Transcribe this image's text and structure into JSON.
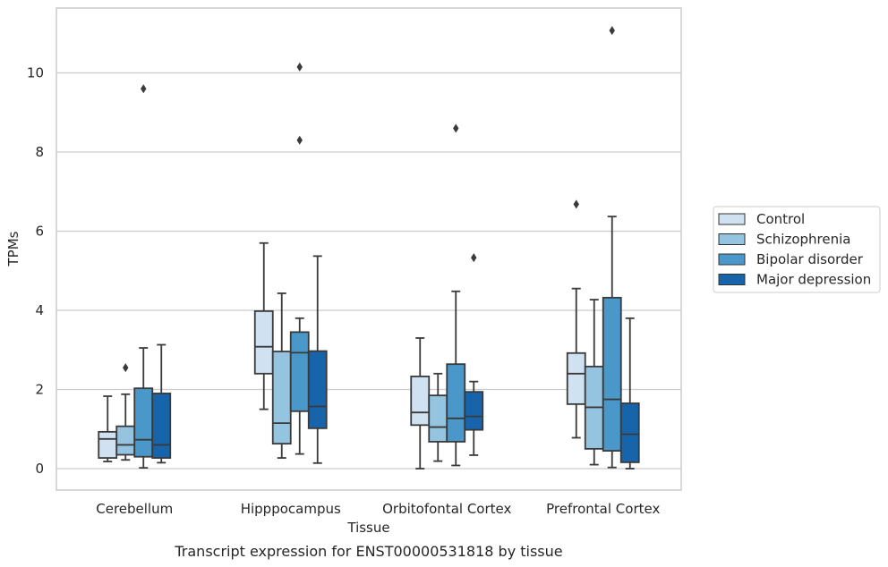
{
  "chart_data": {
    "type": "box",
    "title": "",
    "caption": "Transcript expression for ENST00000531818 by tissue",
    "xlabel": "Tissue",
    "ylabel": "TPMs",
    "ylim": [
      -0.55,
      11.7
    ],
    "yticks": [
      0,
      2,
      4,
      6,
      8,
      10
    ],
    "grid": true,
    "legend_position": "right",
    "categories": [
      "Cerebellum",
      "Hipppocampus",
      "Orbitofontal Cortex",
      "Prefrontal Cortex"
    ],
    "series": [
      {
        "name": "Control",
        "color": "#d0e1f2",
        "boxes": [
          {
            "whislo": 0.18,
            "q1": 0.27,
            "med": 0.75,
            "q3": 0.93,
            "whishi": 1.83,
            "fliers": []
          },
          {
            "whislo": 1.5,
            "q1": 2.4,
            "med": 3.08,
            "q3": 3.98,
            "whishi": 5.7,
            "fliers": []
          },
          {
            "whislo": 0.0,
            "q1": 1.1,
            "med": 1.42,
            "q3": 2.33,
            "whishi": 3.3,
            "fliers": []
          },
          {
            "whislo": 0.78,
            "q1": 1.63,
            "med": 2.4,
            "q3": 2.92,
            "whishi": 4.55,
            "fliers": [
              6.68
            ]
          }
        ]
      },
      {
        "name": "Schizophrenia",
        "color": "#94c4df",
        "boxes": [
          {
            "whislo": 0.22,
            "q1": 0.35,
            "med": 0.6,
            "q3": 1.07,
            "whishi": 1.88,
            "fliers": [
              2.55
            ]
          },
          {
            "whislo": 0.27,
            "q1": 0.63,
            "med": 1.15,
            "q3": 2.96,
            "whishi": 4.43,
            "fliers": []
          },
          {
            "whislo": 0.19,
            "q1": 0.68,
            "med": 1.05,
            "q3": 1.85,
            "whishi": 2.4,
            "fliers": []
          },
          {
            "whislo": 0.1,
            "q1": 0.5,
            "med": 1.55,
            "q3": 2.58,
            "whishi": 4.27,
            "fliers": []
          }
        ]
      },
      {
        "name": "Bipolar disorder",
        "color": "#4a98c9",
        "boxes": [
          {
            "whislo": 0.02,
            "q1": 0.3,
            "med": 0.73,
            "q3": 2.03,
            "whishi": 3.05,
            "fliers": [
              9.6
            ]
          },
          {
            "whislo": 0.37,
            "q1": 1.45,
            "med": 2.93,
            "q3": 3.45,
            "whishi": 3.8,
            "fliers": [
              8.3,
              10.15
            ]
          },
          {
            "whislo": 0.08,
            "q1": 0.68,
            "med": 1.27,
            "q3": 2.64,
            "whishi": 4.48,
            "fliers": [
              8.6
            ]
          },
          {
            "whislo": 0.03,
            "q1": 0.45,
            "med": 1.75,
            "q3": 4.32,
            "whishi": 6.37,
            "fliers": [
              11.07
            ]
          }
        ]
      },
      {
        "name": "Major depression",
        "color": "#1764ab",
        "boxes": [
          {
            "whislo": 0.15,
            "q1": 0.27,
            "med": 0.6,
            "q3": 1.9,
            "whishi": 3.13,
            "fliers": []
          },
          {
            "whislo": 0.14,
            "q1": 1.02,
            "med": 1.57,
            "q3": 2.97,
            "whishi": 5.37,
            "fliers": []
          },
          {
            "whislo": 0.34,
            "q1": 0.98,
            "med": 1.32,
            "q3": 1.94,
            "whishi": 2.2,
            "fliers": [
              5.33
            ]
          },
          {
            "whislo": 0.0,
            "q1": 0.16,
            "med": 0.87,
            "q3": 1.65,
            "whishi": 3.8,
            "fliers": []
          }
        ]
      }
    ]
  }
}
